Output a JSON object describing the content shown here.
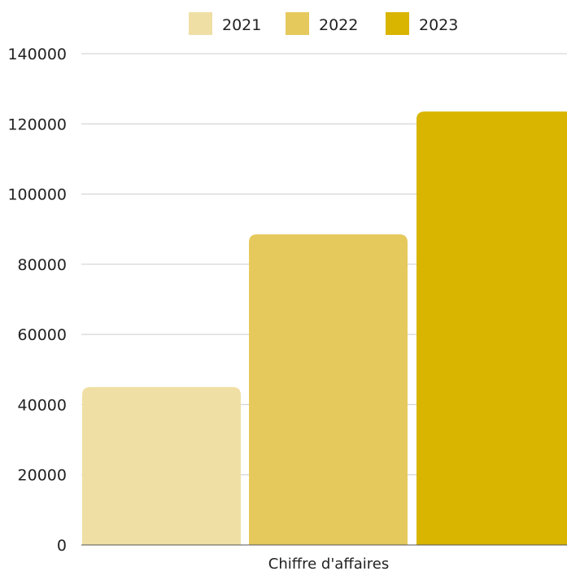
{
  "chart_data": {
    "type": "bar",
    "categories": [
      "Chiffre d'affaires"
    ],
    "series": [
      {
        "name": "2021",
        "values": [
          45000
        ],
        "color": "#f0dfa5"
      },
      {
        "name": "2022",
        "values": [
          88500
        ],
        "color": "#e6c95c"
      },
      {
        "name": "2023",
        "values": [
          123500
        ],
        "color": "#d9b500"
      }
    ],
    "title": "",
    "xlabel": "",
    "ylabel": "",
    "ylim": [
      0,
      140000
    ],
    "yticks": [
      "0",
      "20000",
      "40000",
      "60000",
      "80000",
      "100000",
      "120000",
      "140000"
    ],
    "grid": true,
    "legend": "top-center"
  }
}
